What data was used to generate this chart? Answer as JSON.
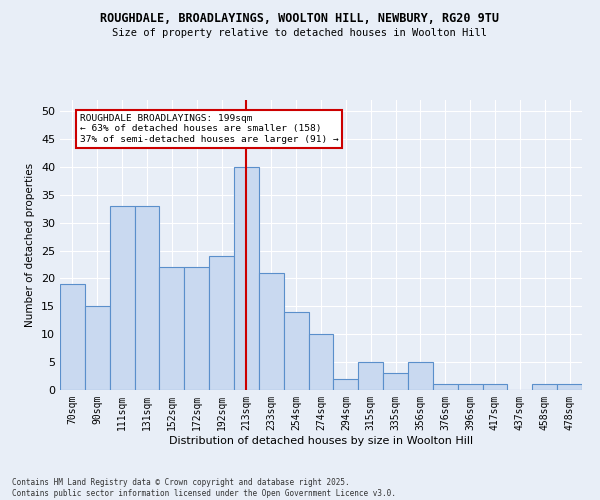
{
  "title1": "ROUGHDALE, BROADLAYINGS, WOOLTON HILL, NEWBURY, RG20 9TU",
  "title2": "Size of property relative to detached houses in Woolton Hill",
  "xlabel": "Distribution of detached houses by size in Woolton Hill",
  "ylabel": "Number of detached properties",
  "categories": [
    "70sqm",
    "90sqm",
    "111sqm",
    "131sqm",
    "152sqm",
    "172sqm",
    "192sqm",
    "213sqm",
    "233sqm",
    "254sqm",
    "274sqm",
    "294sqm",
    "315sqm",
    "335sqm",
    "356sqm",
    "376sqm",
    "396sqm",
    "417sqm",
    "437sqm",
    "458sqm",
    "478sqm"
  ],
  "values": [
    19,
    15,
    33,
    33,
    22,
    22,
    24,
    40,
    21,
    14,
    10,
    2,
    5,
    3,
    5,
    1,
    1,
    1,
    0,
    1,
    1
  ],
  "bar_color": "#c9d9f0",
  "bar_edge_color": "#5a8fcb",
  "highlight_index": 7,
  "highlight_line_color": "#cc0000",
  "annotation_title": "ROUGHDALE BROADLAYINGS: 199sqm",
  "annotation_line1": "← 63% of detached houses are smaller (158)",
  "annotation_line2": "37% of semi-detached houses are larger (91) →",
  "annotation_box_color": "#ffffff",
  "annotation_box_edge": "#cc0000",
  "ylim": [
    0,
    52
  ],
  "yticks": [
    0,
    5,
    10,
    15,
    20,
    25,
    30,
    35,
    40,
    45,
    50
  ],
  "background_color": "#e8eef7",
  "grid_color": "#ffffff",
  "footer1": "Contains HM Land Registry data © Crown copyright and database right 2025.",
  "footer2": "Contains public sector information licensed under the Open Government Licence v3.0."
}
